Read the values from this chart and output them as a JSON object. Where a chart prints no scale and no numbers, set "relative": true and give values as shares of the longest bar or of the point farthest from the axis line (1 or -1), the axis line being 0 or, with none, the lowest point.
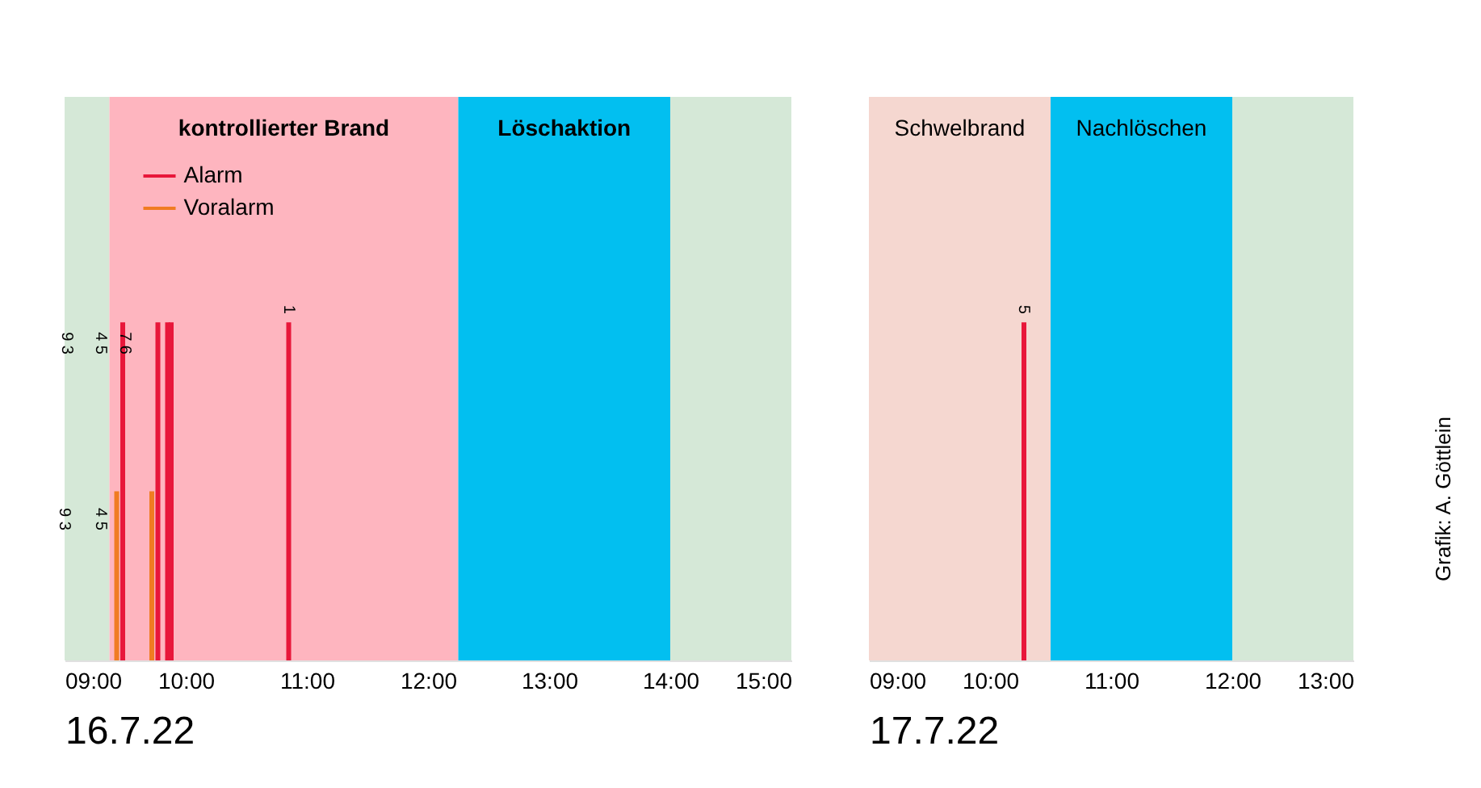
{
  "chart_data": [
    {
      "type": "bar",
      "relative": true,
      "xlabel": "16.7.22",
      "xlim": [
        9,
        15
      ],
      "xticks": [
        {
          "value": 9,
          "label": "09:00"
        },
        {
          "value": 10,
          "label": "10:00"
        },
        {
          "value": 11,
          "label": "11:00"
        },
        {
          "value": 12,
          "label": "12:00"
        },
        {
          "value": 13,
          "label": "13:00"
        },
        {
          "value": 14,
          "label": "14:00"
        },
        {
          "value": 15,
          "label": "15:00"
        }
      ],
      "series": [
        {
          "name": "Alarm",
          "color": "#e8173a",
          "x": [
            9.48,
            9.77,
            9.85,
            9.88,
            10.85
          ],
          "values": [
            1,
            1,
            1,
            1,
            1
          ]
        },
        {
          "name": "Voralarm",
          "color": "#f07c22",
          "x": [
            9.43,
            9.72
          ],
          "values": [
            0.5,
            0.5
          ]
        }
      ],
      "bands": [
        {
          "axis": "x",
          "from": 9,
          "to": 9.37,
          "color": "#d5e8d7"
        },
        {
          "axis": "x",
          "from": 9.37,
          "to": 12.25,
          "label": "kontrollierter Brand",
          "color": "#feb5bf"
        },
        {
          "axis": "x",
          "from": 12.25,
          "to": 14,
          "label": "Löschaktion",
          "color": "#02bff0"
        },
        {
          "axis": "x",
          "from": 14,
          "to": 15,
          "color": "#d5e8d7"
        }
      ],
      "annotations": [
        {
          "text": "9 3",
          "x": 9.02,
          "y": 0.9
        },
        {
          "text": "4 5",
          "x": 9.3,
          "y": 0.9
        },
        {
          "text": "7 6",
          "x": 9.5,
          "y": 0.9
        },
        {
          "text": "1",
          "x": 10.85,
          "y": 1
        },
        {
          "text": "9 3",
          "x": 9.0,
          "y": 0.38
        },
        {
          "text": "4 5",
          "x": 9.3,
          "y": 0.38
        }
      ],
      "legend": "top left",
      "grid": false
    },
    {
      "type": "bar",
      "relative": true,
      "xlabel": "17.7.22",
      "xlim": [
        9,
        13
      ],
      "xticks": [
        {
          "value": 9,
          "label": "09:00"
        },
        {
          "value": 10,
          "label": "10:00"
        },
        {
          "value": 11,
          "label": "11:00"
        },
        {
          "value": 12,
          "label": "12:00"
        },
        {
          "value": 13,
          "label": "13:00"
        }
      ],
      "series": [
        {
          "color": "#e8173a",
          "x": [
            10.28
          ],
          "values": [
            1
          ]
        }
      ],
      "bands": [
        {
          "axis": "x",
          "from": 9,
          "to": 10.5,
          "label": "Schwelbrand",
          "color": "#f5d7d0"
        },
        {
          "axis": "x",
          "from": 10.5,
          "to": 12,
          "label": "Nachlöschen",
          "color": "#02bff0"
        },
        {
          "axis": "x",
          "from": 12,
          "to": 13,
          "color": "#d5e8d7"
        }
      ],
      "annotations": [
        {
          "text": "5",
          "x": 10.28,
          "y": 1
        },
        "Grafik: A. Göttlein"
      ],
      "legend": false,
      "grid": false
    }
  ]
}
